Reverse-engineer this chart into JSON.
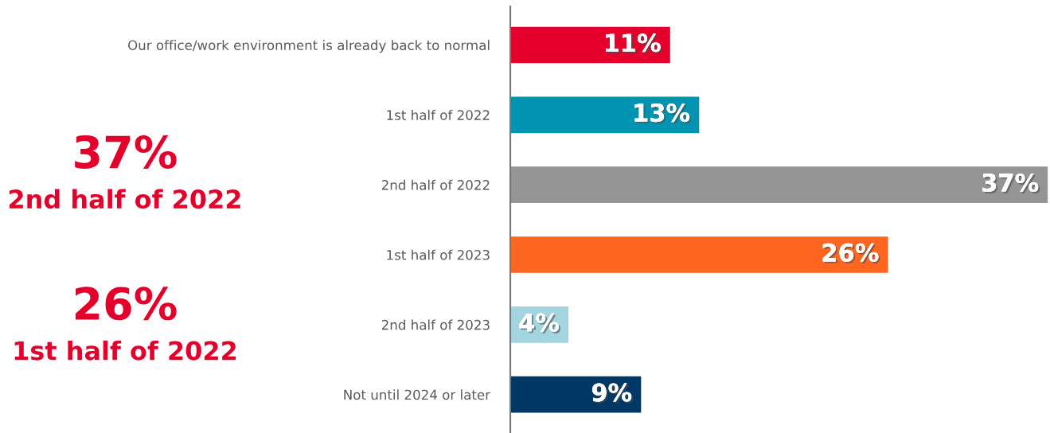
{
  "chart_data": {
    "type": "bar",
    "orientation": "horizontal",
    "categories": [
      "Our office/work environment is already back to normal",
      "1st half of 2022",
      "2nd half of 2022",
      "1st half of 2023",
      "2nd half of 2023",
      "Not until 2024 or later"
    ],
    "values": [
      11,
      13,
      37,
      26,
      4,
      9
    ],
    "colors": [
      "#e4002b",
      "#0093b2",
      "#959595",
      "#ff6720",
      "#a3d5e0",
      "#003865"
    ],
    "value_labels": [
      "11%",
      "13%",
      "37%",
      "26%",
      "4%",
      "9%"
    ],
    "annotations": [
      "37%",
      "2nd half of 2022",
      "26%",
      "1st half of 2022"
    ],
    "grid": false
  }
}
